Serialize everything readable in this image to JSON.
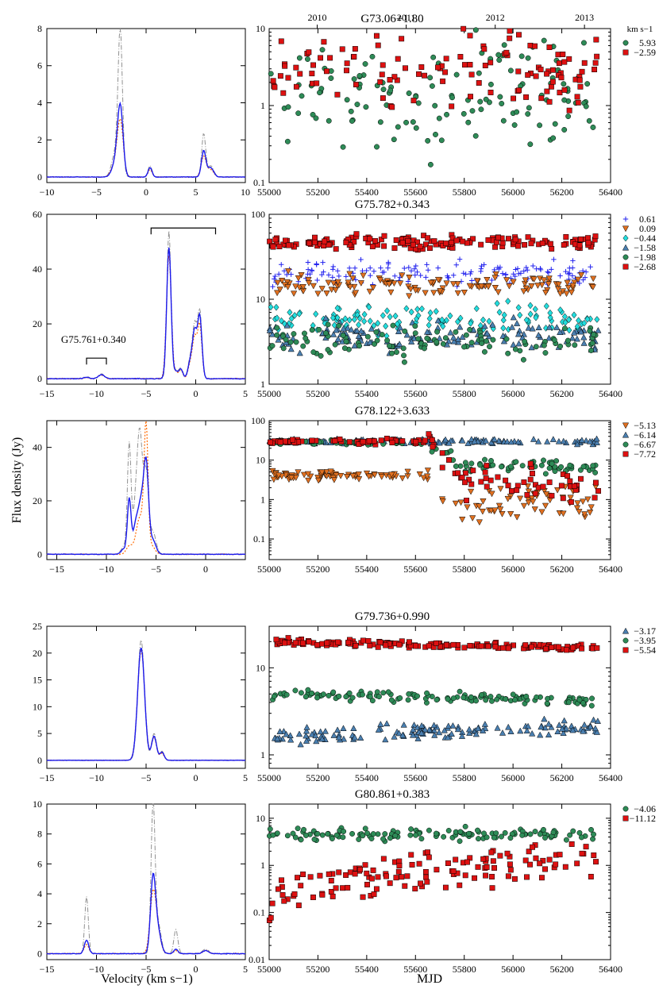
{
  "figure": {
    "ylabel": "Flux density (Jy)",
    "xlabel_left": "Velocity (km s−1)",
    "xlabel_right": "MJD",
    "legend_unit": "km s−1",
    "year_labels": [
      "2010",
      "2011",
      "2012",
      "2013"
    ]
  },
  "colors": {
    "spec_main": "#1a1aee",
    "spec_dash": "#909090",
    "spec_dot": "#ff6a00",
    "green": "#2e8b57",
    "red": "#dd1111",
    "blue_plus": "#2222ee",
    "orange_tri": "#e07020",
    "cyan": "#22dddd",
    "steel": "#4a7fb0"
  },
  "chart_data": [
    {
      "type": "line",
      "panel": "spectrum",
      "source": "G73.06+1.80",
      "xlim": [
        -10,
        10
      ],
      "ylim": [
        -0.3,
        8
      ],
      "xticks": [
        -10,
        -5,
        0,
        5,
        10
      ],
      "yticks": [
        0,
        2,
        4,
        6,
        8
      ],
      "peaks_main": [
        [
          -2.6,
          3.7,
          0.28
        ],
        [
          -3.1,
          0.7,
          0.35
        ],
        [
          0.4,
          0.5,
          0.2
        ],
        [
          5.8,
          1.4,
          0.22
        ],
        [
          6.5,
          0.5,
          0.3
        ]
      ],
      "peaks_dash": [
        [
          -2.6,
          7.6,
          0.22
        ],
        [
          -3.1,
          1.3,
          0.35
        ],
        [
          0.4,
          0.6,
          0.2
        ],
        [
          5.8,
          2.3,
          0.2
        ],
        [
          6.5,
          0.6,
          0.3
        ]
      ],
      "peaks_dot": [
        [
          -2.6,
          3.0,
          0.3
        ],
        [
          -3.2,
          0.6,
          0.35
        ],
        [
          0.4,
          0.4,
          0.2
        ],
        [
          5.8,
          1.1,
          0.25
        ],
        [
          6.5,
          0.4,
          0.3
        ]
      ],
      "baseline_noise": 0.08
    },
    {
      "type": "scatter",
      "panel": "light_curve",
      "title": "G73.06+1.80",
      "log_y": true,
      "xlim": [
        55000,
        56400
      ],
      "ylim": [
        0.1,
        10
      ],
      "yticks": [
        0.1,
        1,
        10
      ],
      "series": [
        {
          "name": "5.93",
          "marker": "circle",
          "color": "green",
          "level": 1.2,
          "scatter": 0.65,
          "t0": 55000,
          "t1": 56350,
          "n": 130
        },
        {
          "name": "−2.59",
          "marker": "square",
          "color": "red",
          "level": 3.2,
          "scatter": 0.5,
          "t0": 55000,
          "t1": 56350,
          "n": 120
        }
      ]
    },
    {
      "type": "line",
      "panel": "spectrum",
      "source": "G75.782+0.343",
      "xlim": [
        -15,
        5
      ],
      "ylim": [
        -2,
        60
      ],
      "xticks": [
        -15,
        -10,
        -5,
        0,
        5
      ],
      "yticks": [
        0,
        20,
        40,
        60
      ],
      "annotation": "G75.761+0.340",
      "bracket_small": [
        -11,
        -9
      ],
      "bracket_large": [
        -4.5,
        2
      ],
      "peaks_main": [
        [
          -11,
          0.5,
          0.3
        ],
        [
          -9.5,
          1.5,
          0.3
        ],
        [
          -2.7,
          48,
          0.22
        ],
        [
          -2.0,
          2.5,
          0.2
        ],
        [
          -1.5,
          3.5,
          0.2
        ],
        [
          -0.5,
          7,
          0.25
        ],
        [
          -0.1,
          15,
          0.2
        ],
        [
          0.4,
          23,
          0.22
        ]
      ],
      "peaks_dash": [
        [
          -11,
          0.6,
          0.3
        ],
        [
          -9.5,
          1.7,
          0.3
        ],
        [
          -2.7,
          54,
          0.2
        ],
        [
          -2.0,
          3,
          0.2
        ],
        [
          -1.5,
          4,
          0.2
        ],
        [
          -0.5,
          8,
          0.25
        ],
        [
          -0.1,
          17,
          0.2
        ],
        [
          0.4,
          25,
          0.22
        ]
      ],
      "peaks_dot": [
        [
          -11,
          0.4,
          0.3
        ],
        [
          -9.5,
          1.3,
          0.3
        ],
        [
          -2.7,
          45,
          0.24
        ],
        [
          -2.0,
          2,
          0.2
        ],
        [
          -1.5,
          3,
          0.2
        ],
        [
          -0.5,
          6,
          0.25
        ],
        [
          -0.1,
          13,
          0.2
        ],
        [
          0.4,
          20,
          0.22
        ]
      ],
      "baseline_noise": 0.1
    },
    {
      "type": "scatter",
      "panel": "light_curve",
      "title": "G75.782+0.343",
      "log_y": true,
      "xlim": [
        55000,
        56400
      ],
      "ylim": [
        1,
        100
      ],
      "yticks": [
        1,
        10,
        100
      ],
      "series": [
        {
          "name": "0.61",
          "marker": "plus",
          "color": "blue_plus",
          "level": 20,
          "scatter": 0.12,
          "t0": 55000,
          "t1": 56350,
          "n": 140
        },
        {
          "name": "0.09",
          "marker": "tri-down",
          "color": "orange_tri",
          "level": 15,
          "scatter": 0.1,
          "t0": 55000,
          "t1": 56350,
          "n": 130
        },
        {
          "name": "−0.44",
          "marker": "diamond",
          "color": "cyan",
          "level": 6,
          "scatter": 0.15,
          "t0": 55000,
          "t1": 56350,
          "n": 130
        },
        {
          "name": "−1.58",
          "marker": "tri-up",
          "color": "steel",
          "level": 3.6,
          "scatter": 0.15,
          "t0": 55000,
          "t1": 56350,
          "n": 140
        },
        {
          "name": "−1.98",
          "marker": "circle",
          "color": "green",
          "level": 3.1,
          "scatter": 0.15,
          "t0": 55000,
          "t1": 56350,
          "n": 110
        },
        {
          "name": "−2.68",
          "marker": "square",
          "color": "red",
          "level": 47,
          "scatter": 0.07,
          "t0": 55000,
          "t1": 56350,
          "n": 150
        }
      ]
    },
    {
      "type": "line",
      "panel": "spectrum",
      "source": "G78.122+3.633",
      "xlim": [
        -16,
        4
      ],
      "ylim": [
        -2,
        50
      ],
      "xticks": [
        -15,
        -10,
        -5,
        0
      ],
      "yticks": [
        0,
        20,
        40
      ],
      "peaks_main": [
        [
          -8.2,
          2,
          0.3
        ],
        [
          -7.7,
          20,
          0.18
        ],
        [
          -7.0,
          12,
          0.3
        ],
        [
          -6.5,
          15,
          0.25
        ],
        [
          -6.0,
          34,
          0.25
        ],
        [
          -5.3,
          5,
          0.3
        ]
      ],
      "peaks_dash": [
        [
          -8.2,
          3,
          0.3
        ],
        [
          -7.7,
          40,
          0.18
        ],
        [
          -7.0,
          20,
          0.3
        ],
        [
          -6.6,
          37,
          0.25
        ],
        [
          -6.0,
          30,
          0.25
        ],
        [
          -5.3,
          8,
          0.3
        ]
      ],
      "peaks_dot": [
        [
          -7.7,
          3,
          0.3
        ],
        [
          -6.6,
          14,
          0.4
        ],
        [
          -6.0,
          45,
          0.2
        ],
        [
          -5.4,
          3,
          0.3
        ]
      ],
      "baseline_noise": 0.1
    },
    {
      "type": "scatter",
      "panel": "light_curve",
      "title": "G78.122+3.633",
      "log_y": true,
      "xlim": [
        55000,
        56400
      ],
      "ylim": [
        0.03,
        100
      ],
      "yticks": [
        0.1,
        1,
        10,
        100
      ],
      "series": [
        {
          "name": "−5.13",
          "marker": "tri-down",
          "color": "orange_tri",
          "level": 4,
          "scatter": 0.1,
          "t0": 55000,
          "t1": 56350,
          "n": 140,
          "break_at": 55650,
          "level_after": 0.8,
          "scatter_after": 0.45
        },
        {
          "name": "−6.14",
          "marker": "tri-up",
          "color": "steel",
          "level": 30,
          "scatter": 0.05,
          "t0": 55000,
          "t1": 56350,
          "n": 140
        },
        {
          "name": "−6.67",
          "marker": "circle",
          "color": "green",
          "level": 28,
          "scatter": 0.05,
          "t0": 55000,
          "t1": 56350,
          "n": 120,
          "break_at": 55650,
          "level_after": 7,
          "scatter_after": 0.15
        },
        {
          "name": "−7.72",
          "marker": "square",
          "color": "red",
          "level": 30,
          "scatter": 0.05,
          "t0": 55000,
          "t1": 56350,
          "n": 110,
          "break_at": 55650,
          "level_after": 2.5,
          "scatter_after": 0.35
        }
      ]
    },
    {
      "type": "line",
      "panel": "spectrum",
      "source": "G79.736+0.990",
      "xlim": [
        -15,
        5
      ],
      "ylim": [
        -1.5,
        25
      ],
      "xticks": [
        -15,
        -10,
        -5,
        0,
        5
      ],
      "yticks": [
        0,
        5,
        10,
        15,
        20,
        25
      ],
      "peaks_main": [
        [
          -5.5,
          21,
          0.35
        ],
        [
          -4.2,
          4.5,
          0.25
        ],
        [
          -3.4,
          1.5,
          0.22
        ]
      ],
      "peaks_dash": [
        [
          -5.5,
          22.5,
          0.33
        ],
        [
          -4.2,
          5,
          0.25
        ],
        [
          -3.4,
          1.7,
          0.22
        ]
      ],
      "peaks_dot": [
        [
          -5.5,
          20.5,
          0.36
        ],
        [
          -4.2,
          4.3,
          0.25
        ],
        [
          -3.4,
          1.3,
          0.22
        ]
      ],
      "baseline_noise": 0.05
    },
    {
      "type": "scatter",
      "panel": "light_curve",
      "title": "G79.736+0.990",
      "log_y": true,
      "xlim": [
        55000,
        56400
      ],
      "ylim": [
        0.7,
        30
      ],
      "yticks": [
        1,
        10
      ],
      "series": [
        {
          "name": "−3.17",
          "marker": "tri-up",
          "color": "steel",
          "level": 1.6,
          "scatter": 0.08,
          "t0": 55000,
          "t1": 56350,
          "n": 140,
          "trend_end": 2.2
        },
        {
          "name": "−3.95",
          "marker": "circle",
          "color": "green",
          "level": 5,
          "scatter": 0.05,
          "t0": 55000,
          "t1": 56350,
          "n": 130,
          "trend_end": 4.2
        },
        {
          "name": "−5.54",
          "marker": "square",
          "color": "red",
          "level": 20,
          "scatter": 0.03,
          "t0": 55000,
          "t1": 56350,
          "n": 150,
          "trend_end": 17
        }
      ]
    },
    {
      "type": "line",
      "panel": "spectrum",
      "source": "G80.861+0.383",
      "xlim": [
        -15,
        5
      ],
      "ylim": [
        -0.4,
        10
      ],
      "xticks": [
        -15,
        -10,
        -5,
        0,
        5
      ],
      "yticks": [
        0,
        2,
        4,
        6,
        8,
        10
      ],
      "peaks_main": [
        [
          -11,
          0.9,
          0.22
        ],
        [
          -4.3,
          5,
          0.25
        ],
        [
          -3.8,
          1.5,
          0.3
        ],
        [
          -2.0,
          0.3,
          0.2
        ],
        [
          1,
          0.2,
          0.3
        ]
      ],
      "peaks_dash": [
        [
          -11,
          3.8,
          0.18
        ],
        [
          -4.3,
          9.8,
          0.2
        ],
        [
          -3.8,
          2,
          0.3
        ],
        [
          -2.0,
          1.6,
          0.2
        ],
        [
          1,
          0.3,
          0.3
        ]
      ],
      "peaks_dot": [
        [
          -11,
          0.6,
          0.25
        ],
        [
          -4.3,
          4,
          0.3
        ],
        [
          -3.8,
          1.2,
          0.3
        ],
        [
          -2.0,
          0.2,
          0.2
        ],
        [
          1,
          0.2,
          0.3
        ]
      ],
      "baseline_noise": 0.1
    },
    {
      "type": "scatter",
      "panel": "light_curve",
      "title": "G80.861+0.383",
      "log_y": true,
      "xlim": [
        55000,
        56400
      ],
      "ylim": [
        0.01,
        20
      ],
      "yticks": [
        0.01,
        0.1,
        1,
        10
      ],
      "series": [
        {
          "name": "−4.06",
          "marker": "circle",
          "color": "green",
          "level": 4.5,
          "scatter": 0.12,
          "t0": 55000,
          "t1": 56350,
          "n": 130
        },
        {
          "name": "−11.12",
          "marker": "square",
          "color": "red",
          "level": 0.2,
          "scatter": 0.4,
          "t0": 55000,
          "t1": 56350,
          "n": 130,
          "trend_end": 1.5
        }
      ]
    }
  ]
}
